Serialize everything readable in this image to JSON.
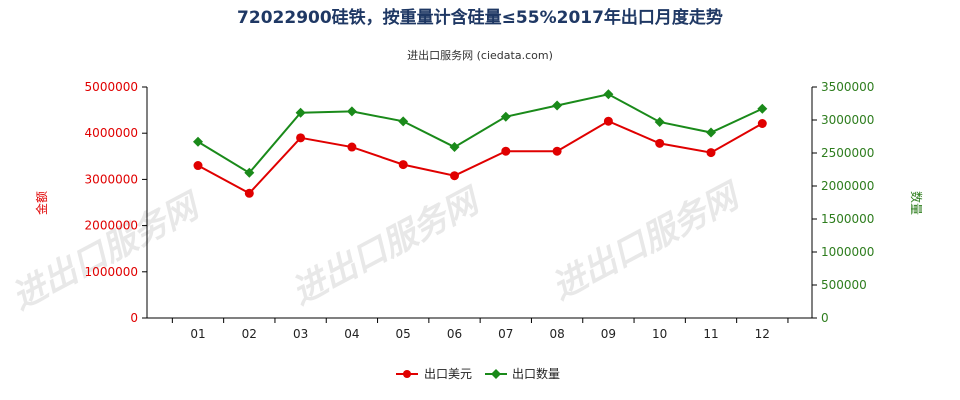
{
  "chart_data": {
    "type": "line",
    "title": "72022900硅铁，按重量计含硅量≤55%2017年出口月度走势",
    "subtitle": "进出口服务网 (ciedata.com)",
    "categories": [
      "01",
      "02",
      "03",
      "04",
      "05",
      "06",
      "07",
      "08",
      "09",
      "10",
      "11",
      "12"
    ],
    "y_left": {
      "label": "金额",
      "ylim": [
        0,
        5000000
      ],
      "ticks": [
        "0",
        "1000000",
        "2000000",
        "3000000",
        "4000000",
        "5000000"
      ],
      "color": "#e00000"
    },
    "y_right": {
      "label": "数量",
      "ylim": [
        0,
        3500000
      ],
      "ticks": [
        "0",
        "500000",
        "1000000",
        "1500000",
        "2000000",
        "2500000",
        "3000000",
        "3500000"
      ],
      "color": "#2e7d1e"
    },
    "series": [
      {
        "name": "出口美元",
        "axis": "left",
        "color": "#e00000",
        "marker": "circle",
        "values": [
          3300000,
          2700000,
          3900000,
          3700000,
          3320000,
          3080000,
          3610000,
          3610000,
          4260000,
          3780000,
          3580000,
          4210000
        ]
      },
      {
        "name": "出口数量",
        "axis": "right",
        "color": "#1a8a1a",
        "marker": "diamond",
        "values": [
          2670000,
          2200000,
          3110000,
          3130000,
          2980000,
          2590000,
          3050000,
          3220000,
          3390000,
          2970000,
          2810000,
          3170000
        ]
      }
    ],
    "legend_position": "bottom-center",
    "grid": false
  },
  "watermark": "进出口服务网"
}
